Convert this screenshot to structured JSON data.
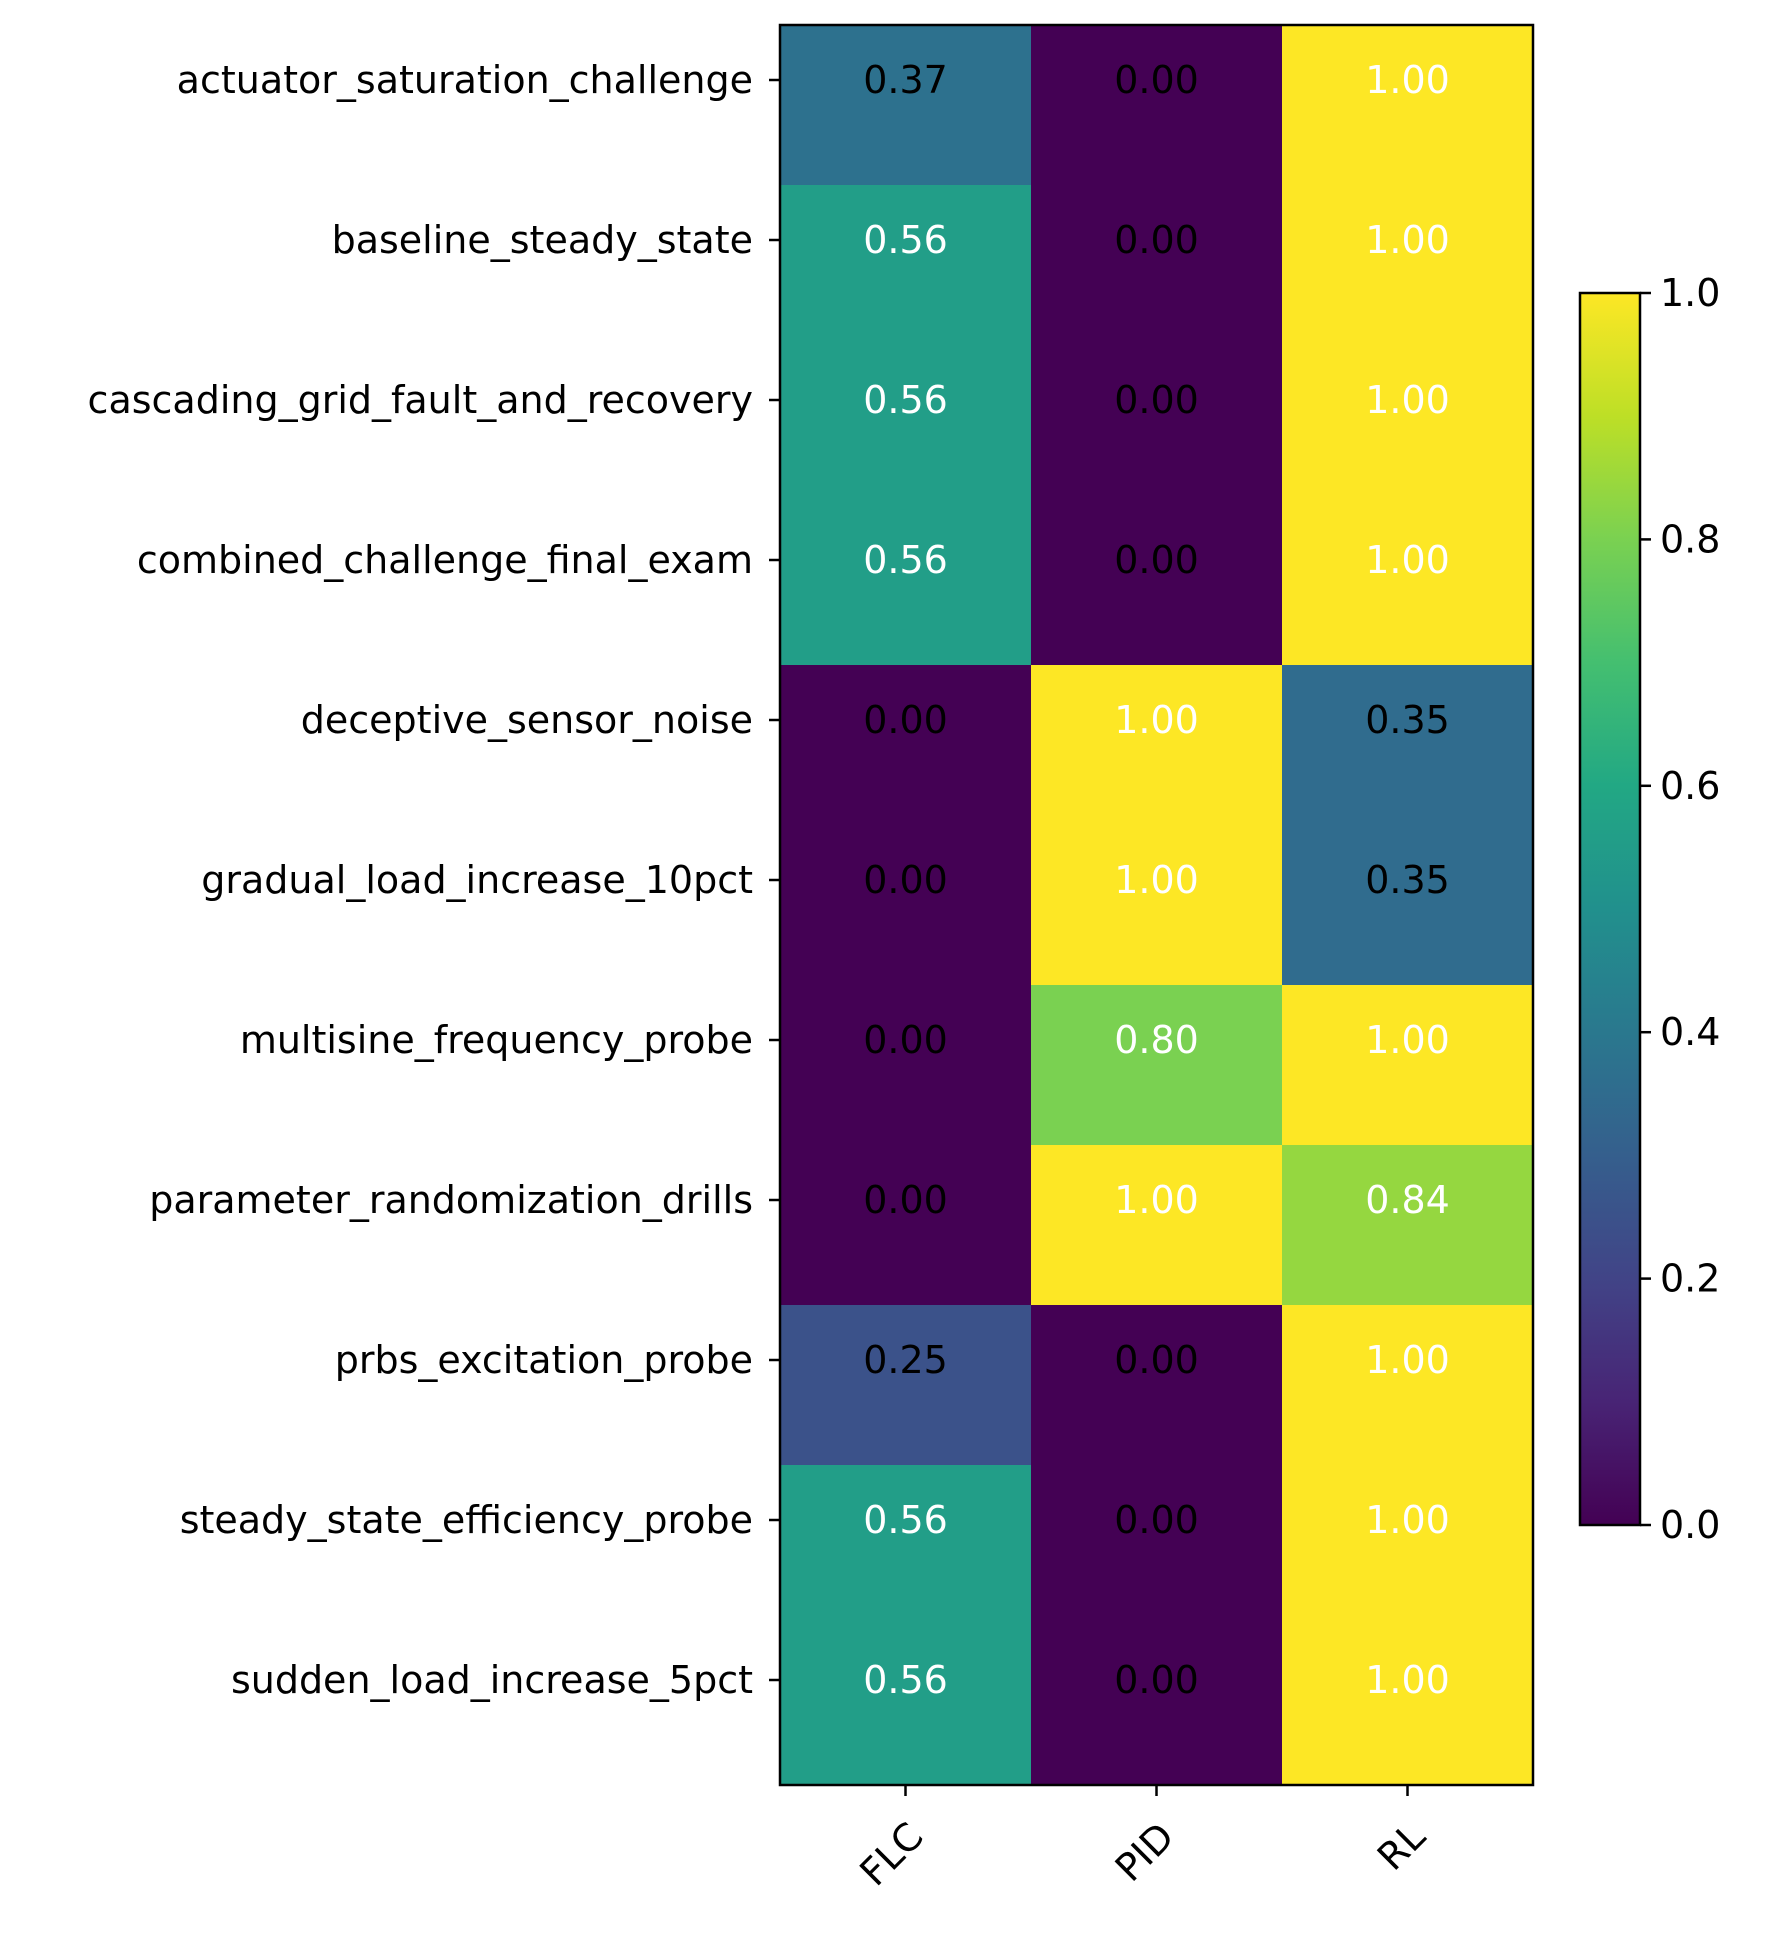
{
  "chart_data": {
    "type": "heatmap",
    "columns": [
      "FLC",
      "PID",
      "RL"
    ],
    "rows": [
      "actuator_saturation_challenge",
      "baseline_steady_state",
      "cascading_grid_fault_and_recovery",
      "combined_challenge_final_exam",
      "deceptive_sensor_noise",
      "gradual_load_increase_10pct",
      "multisine_frequency_probe",
      "parameter_randomization_drills",
      "prbs_excitation_probe",
      "steady_state_efficiency_probe",
      "sudden_load_increase_5pct"
    ],
    "values": [
      [
        0.37,
        0.0,
        1.0
      ],
      [
        0.56,
        0.0,
        1.0
      ],
      [
        0.56,
        0.0,
        1.0
      ],
      [
        0.56,
        0.0,
        1.0
      ],
      [
        0.0,
        1.0,
        0.35
      ],
      [
        0.0,
        1.0,
        0.35
      ],
      [
        0.0,
        0.8,
        1.0
      ],
      [
        0.0,
        1.0,
        0.84
      ],
      [
        0.25,
        0.0,
        1.0
      ],
      [
        0.56,
        0.0,
        1.0
      ],
      [
        0.56,
        0.0,
        1.0
      ]
    ],
    "value_labels": [
      [
        "0.37",
        "0.00",
        "1.00"
      ],
      [
        "0.56",
        "0.00",
        "1.00"
      ],
      [
        "0.56",
        "0.00",
        "1.00"
      ],
      [
        "0.56",
        "0.00",
        "1.00"
      ],
      [
        "0.00",
        "1.00",
        "0.35"
      ],
      [
        "0.00",
        "1.00",
        "0.35"
      ],
      [
        "0.00",
        "0.80",
        "1.00"
      ],
      [
        "0.00",
        "1.00",
        "0.84"
      ],
      [
        "0.25",
        "0.00",
        "1.00"
      ],
      [
        "0.56",
        "0.00",
        "1.00"
      ],
      [
        "0.56",
        "0.00",
        "1.00"
      ]
    ],
    "colormap": "viridis",
    "vmin": 0.0,
    "vmax": 1.0,
    "colorbar": {
      "ticks": [
        0.0,
        0.2,
        0.4,
        0.6,
        0.8,
        1.0
      ],
      "tick_labels": [
        "0.0",
        "0.2",
        "0.4",
        "0.6",
        "0.8",
        "1.0"
      ]
    },
    "title": "",
    "xlabel": "",
    "ylabel": "",
    "grid": false,
    "legend": "colorbar-right"
  }
}
